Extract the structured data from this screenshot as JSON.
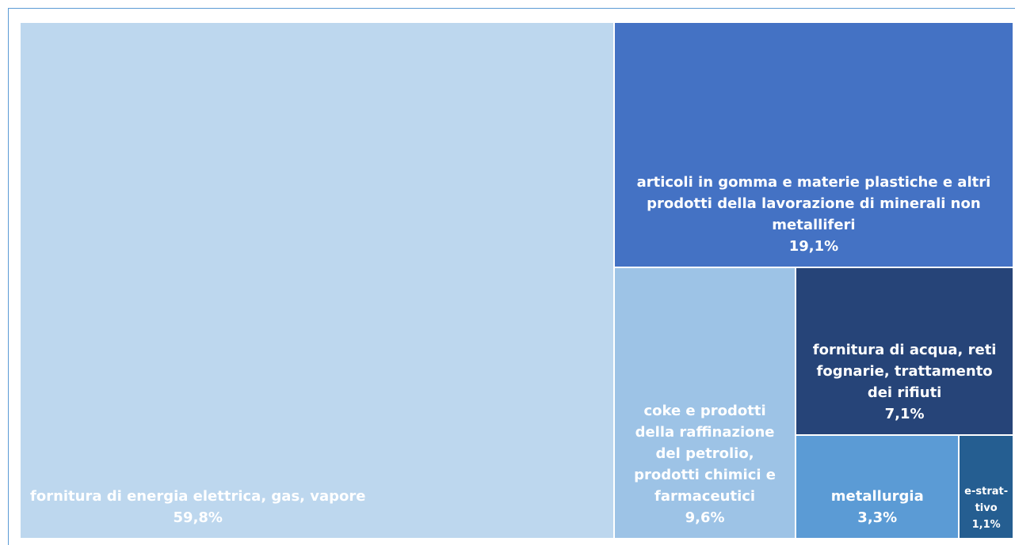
{
  "chart_data": {
    "type": "treemap",
    "categories": [
      "fornitura di energia elettrica, gas, vapore",
      "articoli in gomma e materie plastiche e altri prodotti della lavorazione di minerali non metalliferi",
      "coke e prodotti della raffinazione del petrolio, prodotti chimici e farmaceutici",
      "fornitura di acqua, reti fognarie, trattamento dei rifiuti",
      "metallurgia",
      "e-strat-tivo"
    ],
    "values": [
      59.8,
      19.1,
      9.6,
      7.1,
      3.3,
      1.1
    ],
    "value_labels": [
      "59,8%",
      "19,1%",
      "9,6%",
      "7,1%",
      "3,3%",
      "1,1%"
    ],
    "colors": [
      "#bdd7ee",
      "#4472c4",
      "#9dc3e6",
      "#264478",
      "#5b9bd5",
      "#255e91"
    ]
  }
}
